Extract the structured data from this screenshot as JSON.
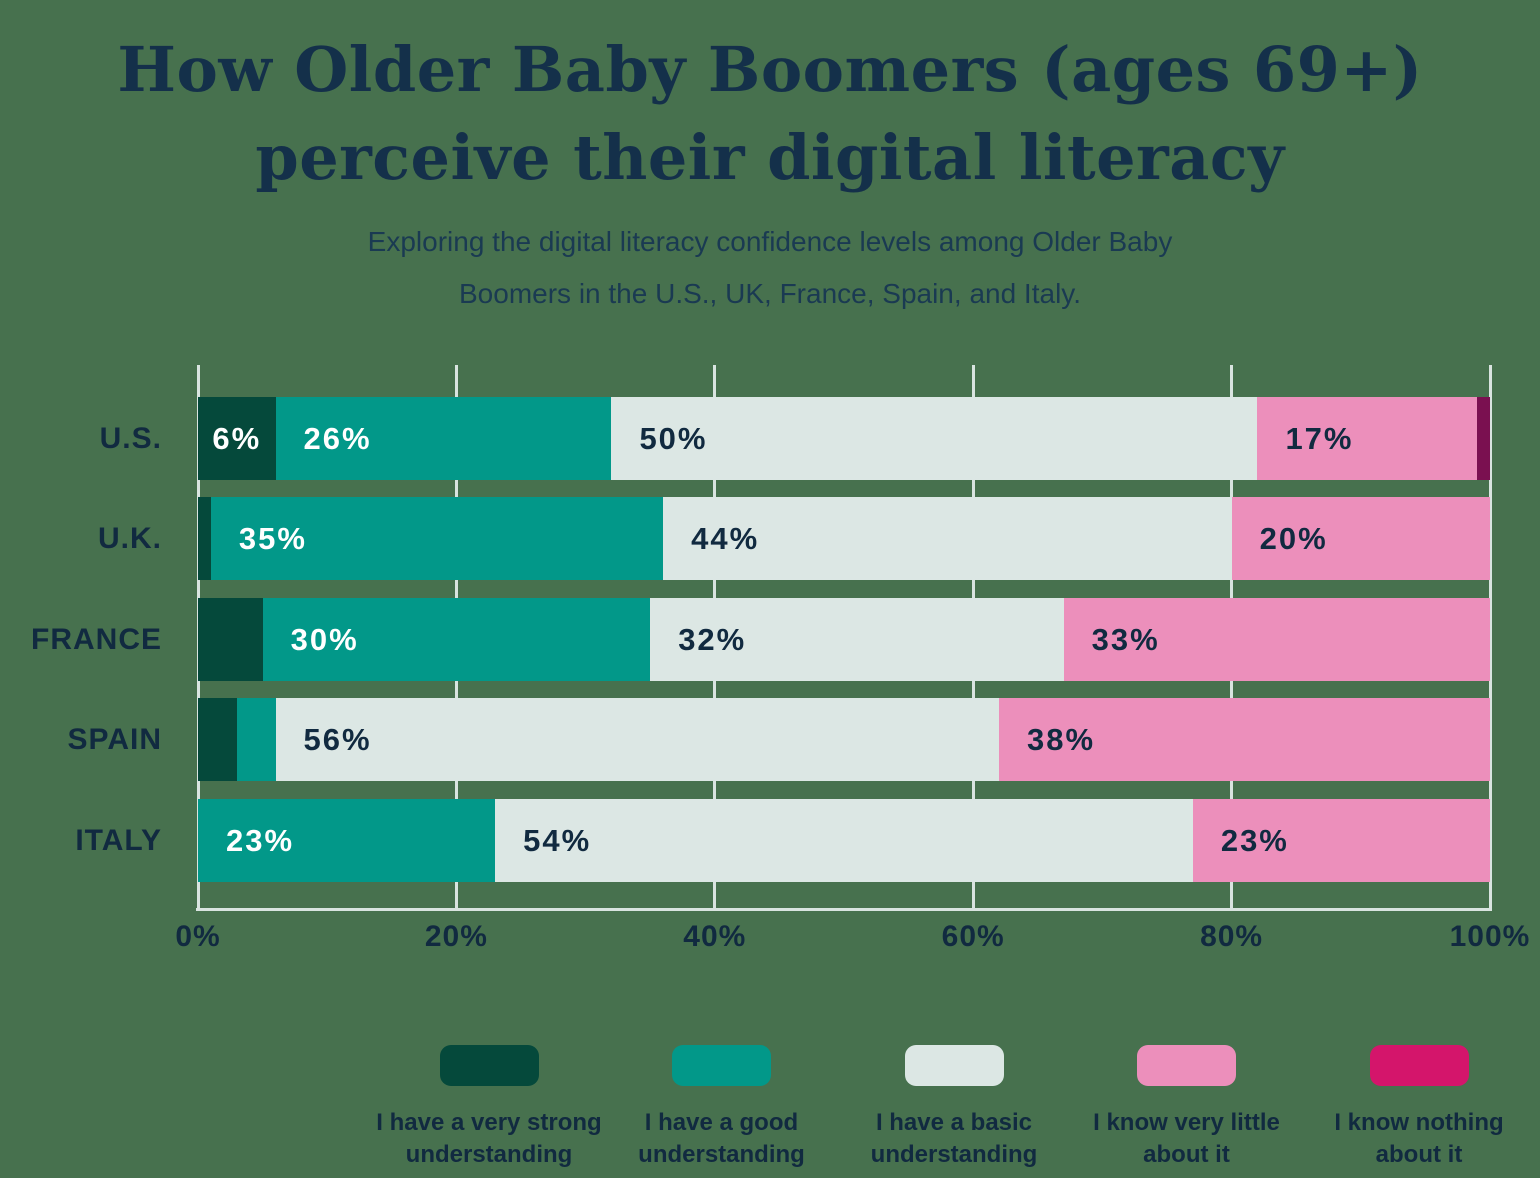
{
  "title": {
    "line1": "How Older Baby Boomers (ages 69+)",
    "line2": "perceive their digital literacy"
  },
  "subtitle": {
    "line1": "Exploring the digital literacy confidence levels among Older Baby",
    "line2": "Boomers in the U.S., UK, France, Spain, and Italy."
  },
  "colors": {
    "background": "#47714E",
    "title_text": "#14304A",
    "label_text": "#112A40",
    "gridline": "#D9E4E0",
    "very_strong": "#05493B",
    "good": "#029889",
    "basic": "#DCE7E4",
    "very_little": "#EC8FBB",
    "nothing_bar": "#7A1050",
    "nothing_legend": "#D4156B"
  },
  "chart_data": {
    "type": "bar",
    "orientation": "horizontal-stacked",
    "title": "How Older Baby Boomers (ages 69+) perceive their digital literacy",
    "categories": [
      "U.S.",
      "U.K.",
      "FRANCE",
      "SPAIN",
      "ITALY"
    ],
    "series": [
      {
        "name": "I have a very strong understanding",
        "color": "#05493B",
        "label_color": "#FFFFFF",
        "values": [
          6,
          1,
          5,
          3,
          0
        ]
      },
      {
        "name": "I have a good understanding",
        "color": "#029889",
        "label_color": "#FFFFFF",
        "values": [
          26,
          35,
          30,
          3,
          23
        ]
      },
      {
        "name": "I have a basic understanding",
        "color": "#DCE7E4",
        "label_color": "#112A40",
        "values": [
          50,
          44,
          32,
          56,
          54
        ]
      },
      {
        "name": "I know very little about it",
        "color": "#EC8FBB",
        "label_color": "#112A40",
        "values": [
          17,
          20,
          33,
          38,
          23
        ]
      },
      {
        "name": "I know nothing about it",
        "color": "#7A1050",
        "label_color": "#FFFFFF",
        "values": [
          1,
          0,
          0,
          0,
          0
        ]
      }
    ],
    "x_ticks": [
      "0%",
      "20%",
      "40%",
      "60%",
      "80%",
      "100%"
    ],
    "xlim": [
      0,
      100
    ],
    "label_suffix": "%",
    "label_min_value": 6,
    "grid": true,
    "legend_position": "bottom"
  },
  "legend": {
    "items": [
      {
        "lines": [
          "I have a very strong",
          "understanding"
        ],
        "color": "#05493B"
      },
      {
        "lines": [
          "I have a good",
          "understanding"
        ],
        "color": "#029889"
      },
      {
        "lines": [
          "I have a basic",
          "understanding"
        ],
        "color": "#DCE7E4"
      },
      {
        "lines": [
          "I know very little",
          "about it"
        ],
        "color": "#EC8FBB"
      },
      {
        "lines": [
          "I know nothing",
          "about it"
        ],
        "color": "#D4156B"
      }
    ]
  }
}
